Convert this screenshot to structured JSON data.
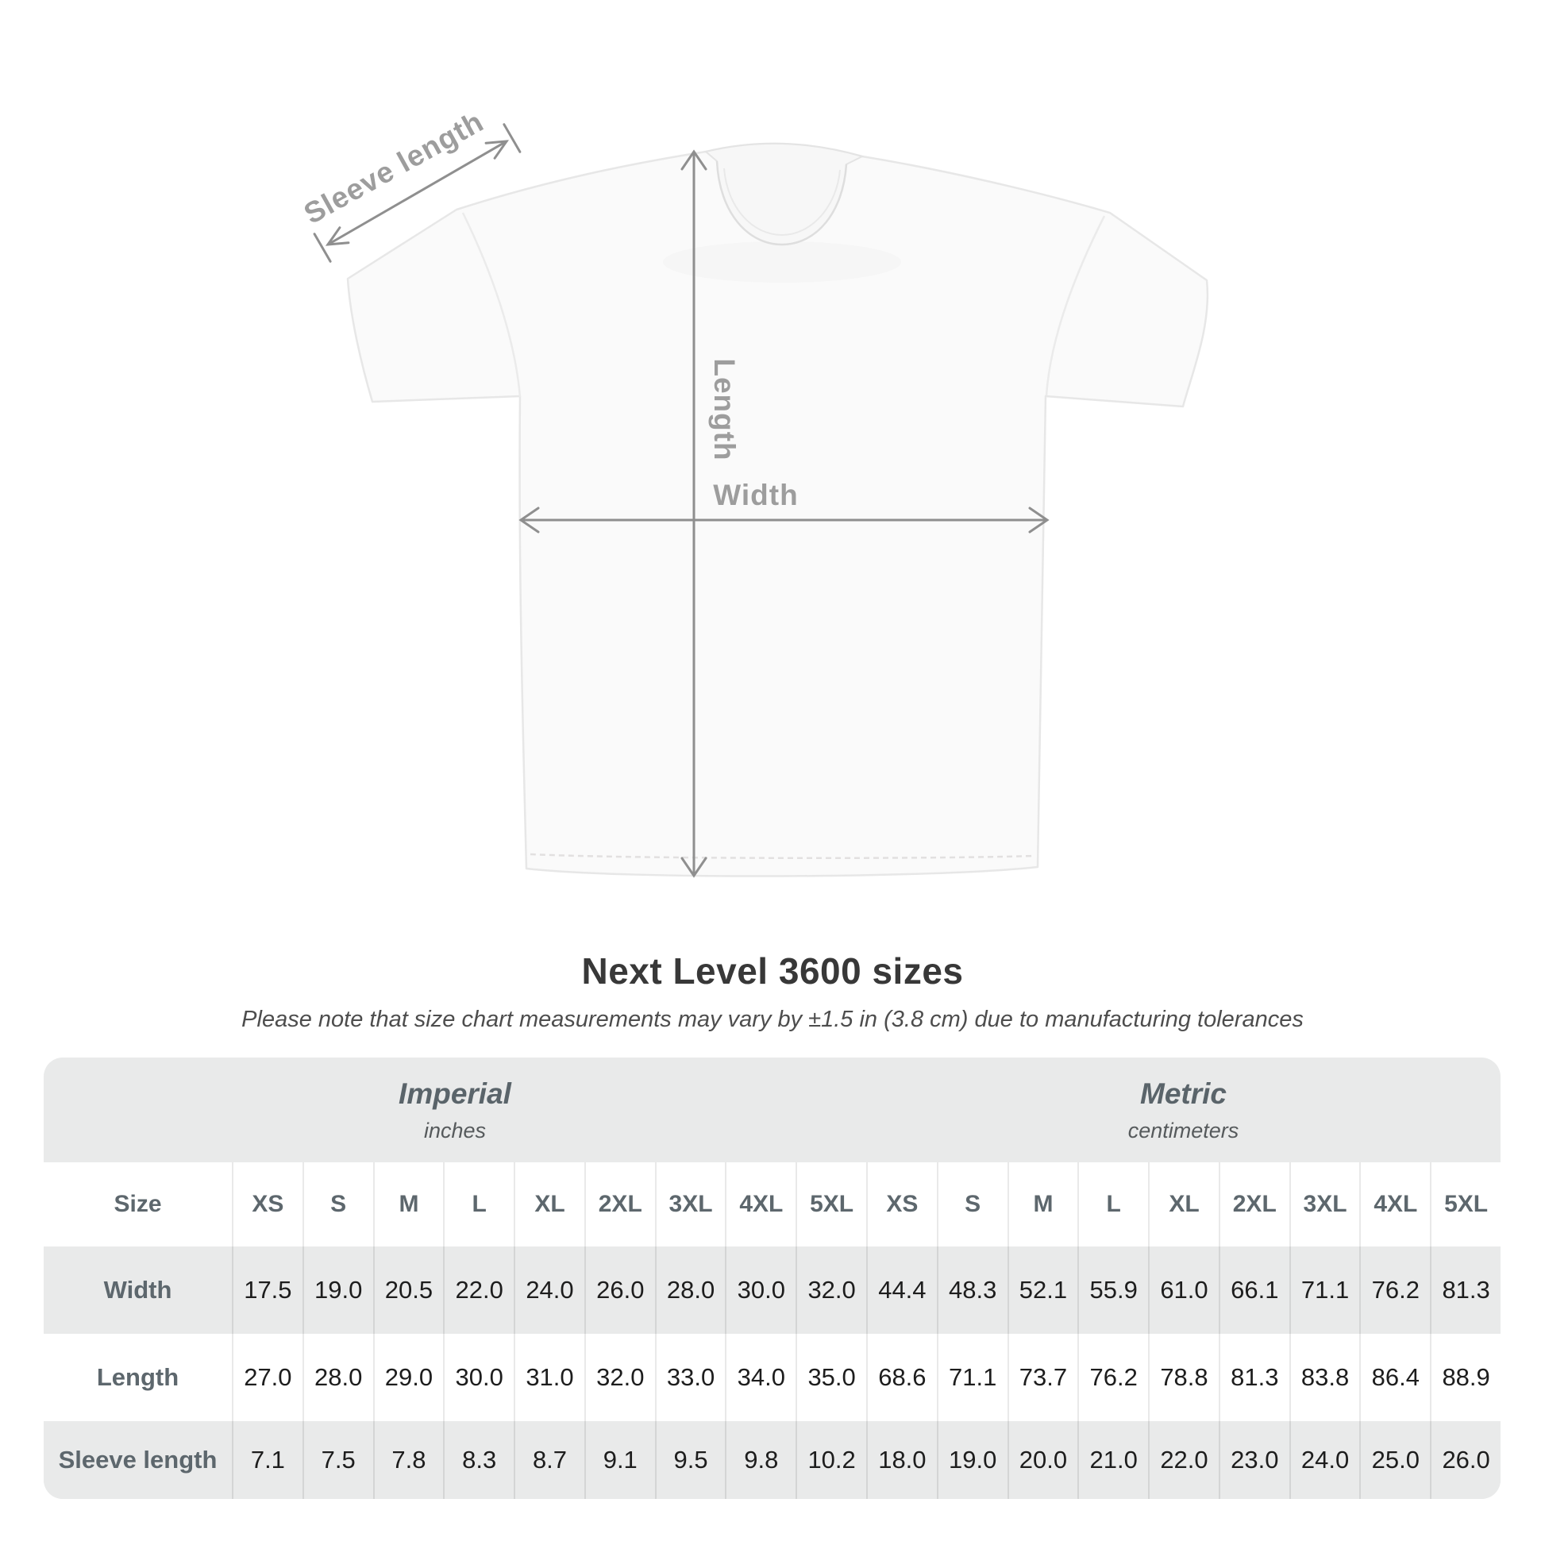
{
  "shirt_diagram": {
    "labels": {
      "sleeve_length": "Sleeve length",
      "length": "Length",
      "width": "Width"
    },
    "colors": {
      "shirt_fill": "#fafafa",
      "shirt_outline": "#e7e7e7",
      "dimension_line": "#8f8f8f",
      "dimension_label": "#9d9d9d"
    }
  },
  "header": {
    "title": "Next Level 3600 sizes",
    "subtitle": "Please note that size chart measurements may vary by ±1.5 in (3.8 cm) due to manufacturing tolerances"
  },
  "table": {
    "unit_groups": [
      {
        "name": "Imperial",
        "unit": "inches"
      },
      {
        "name": "Metric",
        "unit": "centimeters"
      }
    ],
    "size_header": "Size",
    "sizes": [
      "XS",
      "S",
      "M",
      "L",
      "XL",
      "2XL",
      "3XL",
      "4XL",
      "5XL"
    ],
    "rows": [
      {
        "label": "Width",
        "imperial": [
          "17.5",
          "19.0",
          "20.5",
          "22.0",
          "24.0",
          "26.0",
          "28.0",
          "30.0",
          "32.0"
        ],
        "metric": [
          "44.4",
          "48.3",
          "52.1",
          "55.9",
          "61.0",
          "66.1",
          "71.1",
          "76.2",
          "81.3"
        ]
      },
      {
        "label": "Length",
        "imperial": [
          "27.0",
          "28.0",
          "29.0",
          "30.0",
          "31.0",
          "32.0",
          "33.0",
          "34.0",
          "35.0"
        ],
        "metric": [
          "68.6",
          "71.1",
          "73.7",
          "76.2",
          "78.8",
          "81.3",
          "83.8",
          "86.4",
          "88.9"
        ]
      },
      {
        "label": "Sleeve length",
        "imperial": [
          "7.1",
          "7.5",
          "7.8",
          "8.3",
          "8.7",
          "9.1",
          "9.5",
          "9.8",
          "10.2"
        ],
        "metric": [
          "18.0",
          "19.0",
          "20.0",
          "21.0",
          "22.0",
          "23.0",
          "24.0",
          "25.0",
          "26.0"
        ]
      }
    ],
    "colors": {
      "stripe_gray": "#e9eaea",
      "header_text": "#5d676d",
      "value_text": "#1d1d1d"
    }
  }
}
